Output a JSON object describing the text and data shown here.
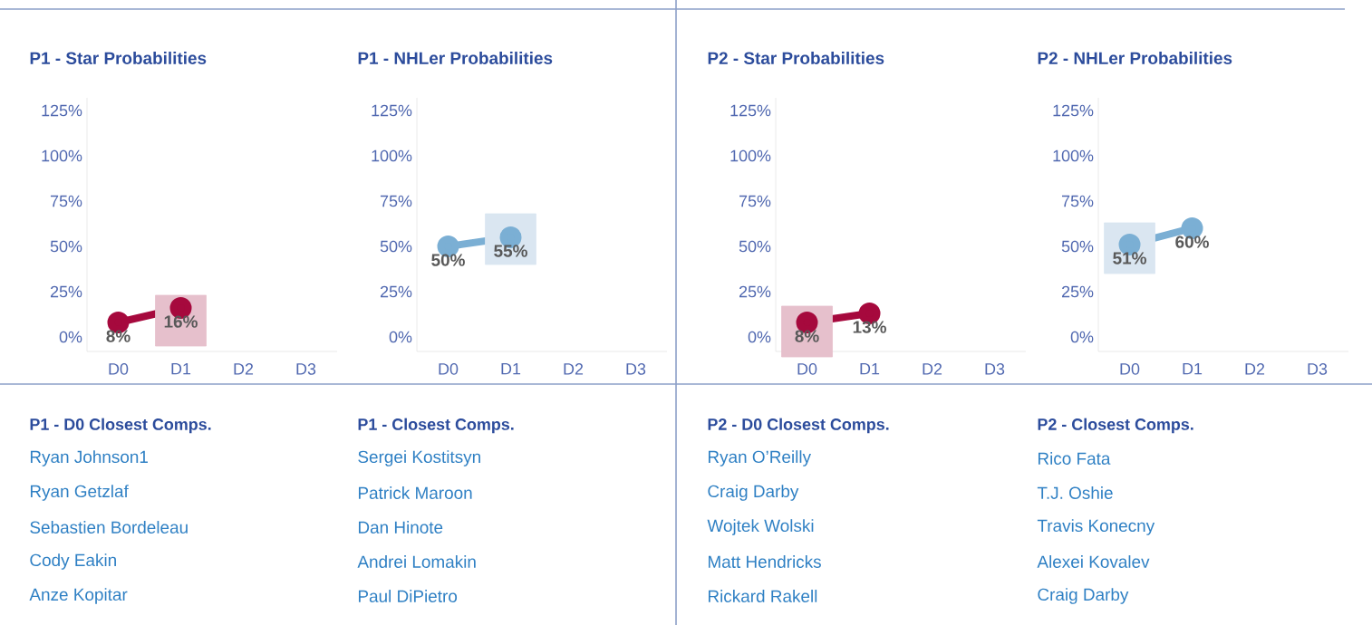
{
  "chart_data": [
    {
      "type": "line",
      "title": "P1 - Star Probabilities",
      "categories": [
        "D0",
        "D1",
        "D2",
        "D3"
      ],
      "ylim": [
        -8,
        132
      ],
      "yticks": [
        {
          "value": 0,
          "label": "0%"
        },
        {
          "value": 25,
          "label": "25%"
        },
        {
          "value": 50,
          "label": "50%"
        },
        {
          "value": 75,
          "label": "75%"
        },
        {
          "value": 100,
          "label": "100%"
        },
        {
          "value": 125,
          "label": "125%"
        }
      ],
      "marker": "circle",
      "series": [
        {
          "type": "scatter",
          "marker": "square",
          "color": "#e6c0cc",
          "values": [
            null,
            9,
            null,
            null
          ]
        },
        {
          "color": "#a6093d",
          "values": [
            8,
            16,
            null,
            null
          ],
          "value_labels": [
            "8%",
            "16%",
            null,
            null
          ]
        }
      ]
    },
    {
      "type": "line",
      "title": "P1 - NHLer Probabilities",
      "categories": [
        "D0",
        "D1",
        "D2",
        "D3"
      ],
      "ylim": [
        -8,
        132
      ],
      "yticks": [
        {
          "value": 0,
          "label": "0%"
        },
        {
          "value": 25,
          "label": "25%"
        },
        {
          "value": 50,
          "label": "50%"
        },
        {
          "value": 75,
          "label": "75%"
        },
        {
          "value": 100,
          "label": "100%"
        },
        {
          "value": 125,
          "label": "125%"
        }
      ],
      "marker": "circle",
      "series": [
        {
          "type": "scatter",
          "marker": "square",
          "color": "#dae6f1",
          "values": [
            null,
            54,
            null,
            null
          ]
        },
        {
          "color": "#7bafd4",
          "values": [
            50,
            55,
            null,
            null
          ],
          "value_labels": [
            "50%",
            "55%",
            null,
            null
          ]
        }
      ]
    },
    {
      "type": "line",
      "title": "P2 - Star Probabilities",
      "categories": [
        "D0",
        "D1",
        "D2",
        "D3"
      ],
      "ylim": [
        -8,
        132
      ],
      "yticks": [
        {
          "value": 0,
          "label": "0%"
        },
        {
          "value": 25,
          "label": "25%"
        },
        {
          "value": 50,
          "label": "50%"
        },
        {
          "value": 75,
          "label": "75%"
        },
        {
          "value": 100,
          "label": "100%"
        },
        {
          "value": 125,
          "label": "125%"
        }
      ],
      "marker": "circle",
      "series": [
        {
          "type": "scatter",
          "marker": "square",
          "color": "#e6c0cc",
          "values": [
            3,
            null,
            null,
            null
          ]
        },
        {
          "color": "#a6093d",
          "values": [
            8,
            13,
            null,
            null
          ],
          "value_labels": [
            "8%",
            "13%",
            null,
            null
          ]
        }
      ]
    },
    {
      "type": "line",
      "title": "P2 - NHLer Probabilities",
      "categories": [
        "D0",
        "D1",
        "D2",
        "D3"
      ],
      "ylim": [
        -8,
        132
      ],
      "yticks": [
        {
          "value": 0,
          "label": "0%"
        },
        {
          "value": 25,
          "label": "25%"
        },
        {
          "value": 50,
          "label": "50%"
        },
        {
          "value": 75,
          "label": "75%"
        },
        {
          "value": 100,
          "label": "100%"
        },
        {
          "value": 125,
          "label": "125%"
        }
      ],
      "marker": "circle",
      "series": [
        {
          "type": "scatter",
          "marker": "square",
          "color": "#dae6f1",
          "values": [
            49,
            null,
            null,
            null
          ]
        },
        {
          "color": "#7bafd4",
          "values": [
            51,
            60,
            null,
            null
          ],
          "value_labels": [
            "51%",
            "60%",
            null,
            null
          ]
        }
      ]
    },
    {
      "type": "other",
      "title": "P1 - D0 Closest Comps.",
      "annotations": [
        "Ryan Johnson1",
        "Ryan Getzlaf",
        "Sebastien Bordeleau",
        "Cody Eakin",
        "Anze Kopitar"
      ]
    },
    {
      "type": "other",
      "title": "P1 - Closest Comps.",
      "annotations": [
        "Sergei Kostitsyn",
        "Patrick Maroon",
        "Dan Hinote",
        "Andrei Lomakin",
        "Paul DiPietro"
      ]
    },
    {
      "type": "other",
      "title": "P2 - D0 Closest Comps.",
      "annotations": [
        "Ryan O’Reilly",
        "Craig Darby",
        "Wojtek Wolski",
        "Matt Hendricks",
        "Rickard Rakell"
      ]
    },
    {
      "type": "other",
      "title": "P2 - Closest Comps.",
      "annotations": [
        "Rico Fata",
        "T.J. Oshie",
        "Travis Konecny",
        "Alexei Kovalev",
        "Craig Darby"
      ]
    }
  ]
}
